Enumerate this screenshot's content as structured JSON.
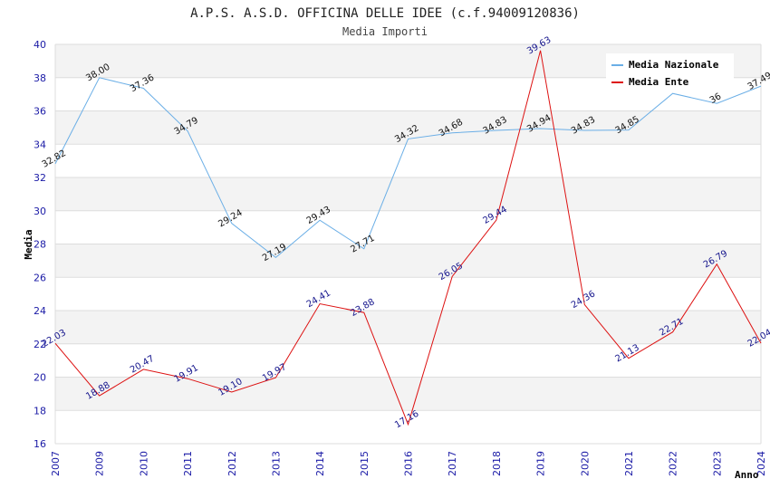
{
  "chart_data": {
    "type": "line",
    "title": "A.P.S. A.S.D. OFFICINA DELLE IDEE (c.f.94009120836)",
    "subtitle": "Media Importi",
    "xlabel": "Anno",
    "ylabel": "Media",
    "ylim": [
      16,
      40
    ],
    "y_ticks": [
      16,
      18,
      20,
      22,
      24,
      26,
      28,
      30,
      32,
      34,
      36,
      38,
      40
    ],
    "grid": true,
    "legend_position": "top-right",
    "x": [
      "2007",
      "2009",
      "2010",
      "2011",
      "2012",
      "2013",
      "2014",
      "2015",
      "2016",
      "2017",
      "2018",
      "2019",
      "2020",
      "2021",
      "2022",
      "2023",
      "2024"
    ],
    "series": [
      {
        "name": "Media Nazionale",
        "color": "#6aaee6",
        "values": [
          32.82,
          38.0,
          37.36,
          34.79,
          29.24,
          27.19,
          29.43,
          27.71,
          34.32,
          34.68,
          34.83,
          34.94,
          34.83,
          34.85,
          37.05,
          36.45,
          37.49
        ],
        "labels": [
          "32.82",
          "38.00",
          "37.36",
          "34.79",
          "29.24",
          "27.19",
          "29.43",
          "27.71",
          "34.32",
          "34.68",
          "34.83",
          "34.94",
          "34.83",
          "34.85",
          "",
          "36",
          "37.49"
        ]
      },
      {
        "name": "Media Ente",
        "color": "#dd1111",
        "values": [
          22.03,
          18.88,
          20.47,
          19.91,
          19.1,
          19.97,
          24.41,
          23.88,
          17.16,
          26.05,
          29.44,
          39.63,
          24.36,
          21.13,
          22.71,
          26.79,
          22.04
        ],
        "labels": [
          "22.03",
          "18.88",
          "20.47",
          "19.91",
          "19.10",
          "19.97",
          "24.41",
          "23.88",
          "17.16",
          "26.05",
          "29.44",
          "39.63",
          "24.36",
          "21.13",
          "22.71",
          "26.79",
          "22.04"
        ]
      }
    ]
  }
}
